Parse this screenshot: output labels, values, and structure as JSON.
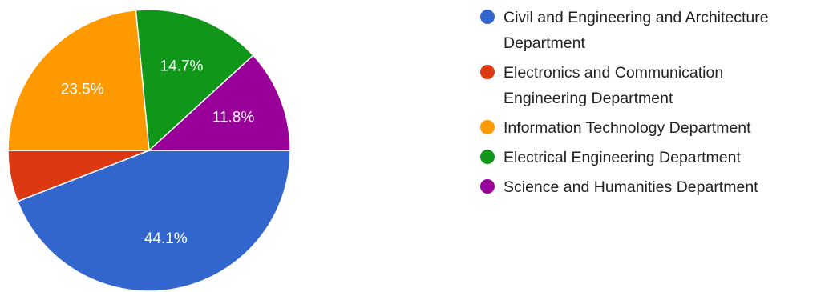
{
  "chart_data": {
    "type": "pie",
    "start_angle_deg": 90,
    "direction": "clockwise",
    "slices": [
      {
        "name": "Civil and Engineering and Architecture Department",
        "value": 44.1,
        "label": "44.1%",
        "color": "#3366cc"
      },
      {
        "name": "Electronics and Communication Engineering Department",
        "value": 5.9,
        "label": "",
        "color": "#dc3912"
      },
      {
        "name": "Information Technology Department",
        "value": 23.5,
        "label": "23.5%",
        "color": "#ff9900"
      },
      {
        "name": "Electrical Engineering Department",
        "value": 14.7,
        "label": "14.7%",
        "color": "#109618"
      },
      {
        "name": "Science and Humanities Department",
        "value": 11.8,
        "label": "11.8%",
        "color": "#990099"
      }
    ],
    "legend": {
      "position": "right",
      "lines": [
        [
          "Civil and Engineering and Architecture",
          "Department"
        ],
        [
          "Electronics and Communication",
          "Engineering Department"
        ],
        [
          "Information Technology Department"
        ],
        [
          "Electrical Engineering Department"
        ],
        [
          "Science and Humanities Department"
        ]
      ]
    }
  }
}
